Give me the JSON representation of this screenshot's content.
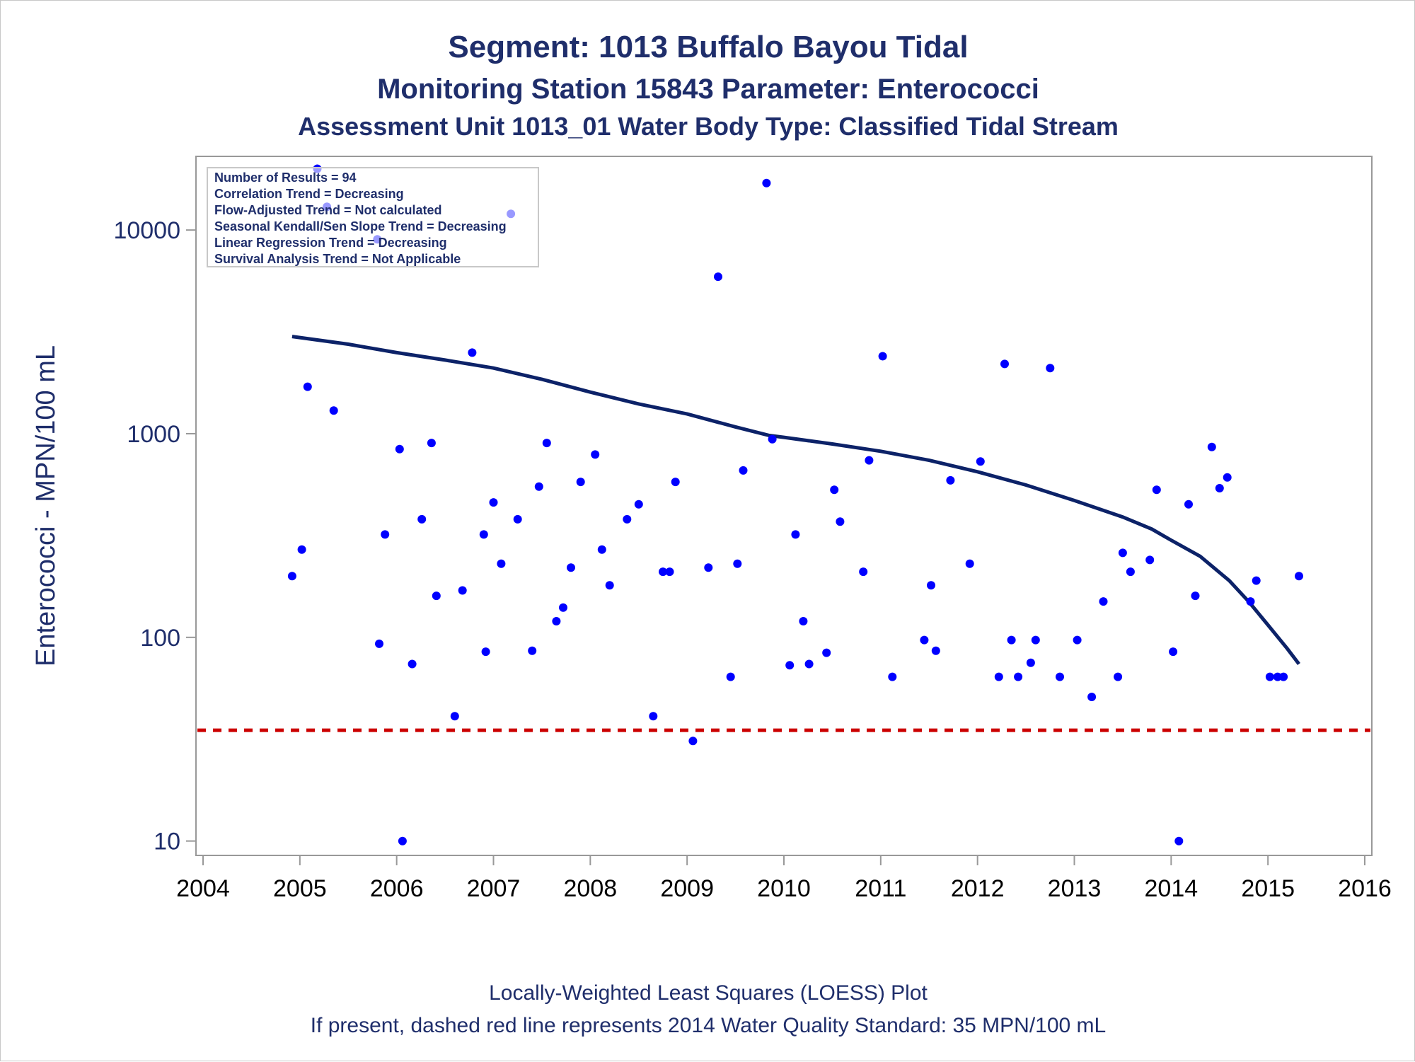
{
  "titles": {
    "main": "Segment: 1013  Buffalo Bayou Tidal",
    "sub1": "Monitoring Station 15843 Parameter: Enterococci",
    "sub2": "Assessment Unit 1013_01   Water Body Type: Classified Tidal Stream"
  },
  "stats_box": {
    "lines": [
      "Number of Results = 94",
      "Correlation Trend = Decreasing",
      "Flow-Adjusted Trend = Not calculated",
      "Seasonal Kendall/Sen Slope Trend = Decreasing",
      "Linear Regression Trend = Decreasing",
      "Survival Analysis Trend = Not Applicable"
    ]
  },
  "footnotes": {
    "line1": "Locally-Weighted Least Squares (LOESS) Plot",
    "line2": "If present, dashed red line represents 2014 Water Quality Standard: 35 MPN/100 mL"
  },
  "colors": {
    "text": "#1f2e6b",
    "points": "#0000ff",
    "loess": "#0c2268",
    "standard_line": "#cc0000",
    "frame": "#999999"
  },
  "chart_data": {
    "type": "scatter",
    "title": "Segment: 1013  Buffalo Bayou Tidal",
    "xlabel": "",
    "ylabel": "Enterococci - MPN/100 mL",
    "x_scale": "linear",
    "y_scale": "log",
    "xlim": [
      2004,
      2016
    ],
    "ylim": [
      8.5,
      23000
    ],
    "xticks": [
      2004,
      2005,
      2006,
      2007,
      2008,
      2009,
      2010,
      2011,
      2012,
      2013,
      2014,
      2015,
      2016
    ],
    "yticks": [
      10,
      100,
      1000,
      10000
    ],
    "xtick_labels": [
      "2004",
      "2005",
      "2006",
      "2007",
      "2008",
      "2009",
      "2010",
      "2011",
      "2012",
      "2013",
      "2014",
      "2015",
      "2016"
    ],
    "ytick_labels": [
      "10",
      "100",
      "1000",
      "10000"
    ],
    "grid": false,
    "reference_line": {
      "y": 35
    },
    "points": [
      [
        2004.92,
        200
      ],
      [
        2005.02,
        270
      ],
      [
        2005.08,
        1700
      ],
      [
        2005.18,
        20000
      ],
      [
        2005.28,
        13000
      ],
      [
        2005.35,
        1300
      ],
      [
        2005.8,
        9000
      ],
      [
        2005.82,
        93
      ],
      [
        2005.88,
        320
      ],
      [
        2006.03,
        840
      ],
      [
        2006.06,
        10
      ],
      [
        2006.16,
        74
      ],
      [
        2006.26,
        380
      ],
      [
        2006.36,
        900
      ],
      [
        2006.41,
        160
      ],
      [
        2006.6,
        41
      ],
      [
        2006.68,
        170
      ],
      [
        2006.78,
        2500
      ],
      [
        2006.9,
        320
      ],
      [
        2006.92,
        85
      ],
      [
        2007.0,
        460
      ],
      [
        2007.08,
        230
      ],
      [
        2007.18,
        12000
      ],
      [
        2007.25,
        380
      ],
      [
        2007.4,
        86
      ],
      [
        2007.47,
        550
      ],
      [
        2007.55,
        900
      ],
      [
        2007.65,
        120
      ],
      [
        2007.72,
        140
      ],
      [
        2007.8,
        220
      ],
      [
        2007.9,
        580
      ],
      [
        2008.05,
        790
      ],
      [
        2008.12,
        270
      ],
      [
        2008.2,
        180
      ],
      [
        2008.38,
        380
      ],
      [
        2008.5,
        450
      ],
      [
        2008.65,
        41
      ],
      [
        2008.75,
        210
      ],
      [
        2008.82,
        210
      ],
      [
        2008.88,
        580
      ],
      [
        2009.06,
        31
      ],
      [
        2009.22,
        220
      ],
      [
        2009.32,
        5900
      ],
      [
        2009.45,
        64
      ],
      [
        2009.52,
        230
      ],
      [
        2009.58,
        660
      ],
      [
        2009.82,
        17000
      ],
      [
        2009.88,
        940
      ],
      [
        2010.06,
        73
      ],
      [
        2010.12,
        320
      ],
      [
        2010.2,
        120
      ],
      [
        2010.26,
        74
      ],
      [
        2010.44,
        84
      ],
      [
        2010.52,
        530
      ],
      [
        2010.58,
        370
      ],
      [
        2010.82,
        210
      ],
      [
        2010.88,
        740
      ],
      [
        2011.02,
        2400
      ],
      [
        2011.12,
        64
      ],
      [
        2011.45,
        97
      ],
      [
        2011.52,
        180
      ],
      [
        2011.57,
        86
      ],
      [
        2011.72,
        590
      ],
      [
        2011.92,
        230
      ],
      [
        2012.03,
        730
      ],
      [
        2012.22,
        64
      ],
      [
        2012.28,
        2200
      ],
      [
        2012.35,
        97
      ],
      [
        2012.42,
        64
      ],
      [
        2012.55,
        75
      ],
      [
        2012.6,
        97
      ],
      [
        2012.75,
        2100
      ],
      [
        2012.85,
        64
      ],
      [
        2013.03,
        97
      ],
      [
        2013.18,
        51
      ],
      [
        2013.3,
        150
      ],
      [
        2013.45,
        64
      ],
      [
        2013.5,
        260
      ],
      [
        2013.58,
        210
      ],
      [
        2013.78,
        240
      ],
      [
        2013.85,
        530
      ],
      [
        2014.02,
        85
      ],
      [
        2014.08,
        10
      ],
      [
        2014.18,
        450
      ],
      [
        2014.25,
        160
      ],
      [
        2014.42,
        860
      ],
      [
        2014.5,
        540
      ],
      [
        2014.58,
        610
      ],
      [
        2014.82,
        150
      ],
      [
        2014.88,
        190
      ],
      [
        2015.02,
        64
      ],
      [
        2015.1,
        64
      ],
      [
        2015.16,
        64
      ],
      [
        2015.32,
        200
      ]
    ],
    "loess": [
      [
        2004.92,
        3000
      ],
      [
        2005.5,
        2750
      ],
      [
        2006.0,
        2500
      ],
      [
        2006.5,
        2300
      ],
      [
        2007.0,
        2100
      ],
      [
        2007.5,
        1850
      ],
      [
        2008.0,
        1600
      ],
      [
        2008.5,
        1400
      ],
      [
        2009.0,
        1250
      ],
      [
        2009.5,
        1080
      ],
      [
        2009.85,
        980
      ],
      [
        2010.0,
        960
      ],
      [
        2010.5,
        890
      ],
      [
        2011.0,
        820
      ],
      [
        2011.5,
        740
      ],
      [
        2012.0,
        650
      ],
      [
        2012.5,
        560
      ],
      [
        2013.0,
        470
      ],
      [
        2013.5,
        390
      ],
      [
        2013.8,
        340
      ],
      [
        2014.0,
        300
      ],
      [
        2014.3,
        250
      ],
      [
        2014.6,
        190
      ],
      [
        2014.8,
        150
      ],
      [
        2015.0,
        115
      ],
      [
        2015.2,
        88
      ],
      [
        2015.32,
        74
      ]
    ]
  }
}
